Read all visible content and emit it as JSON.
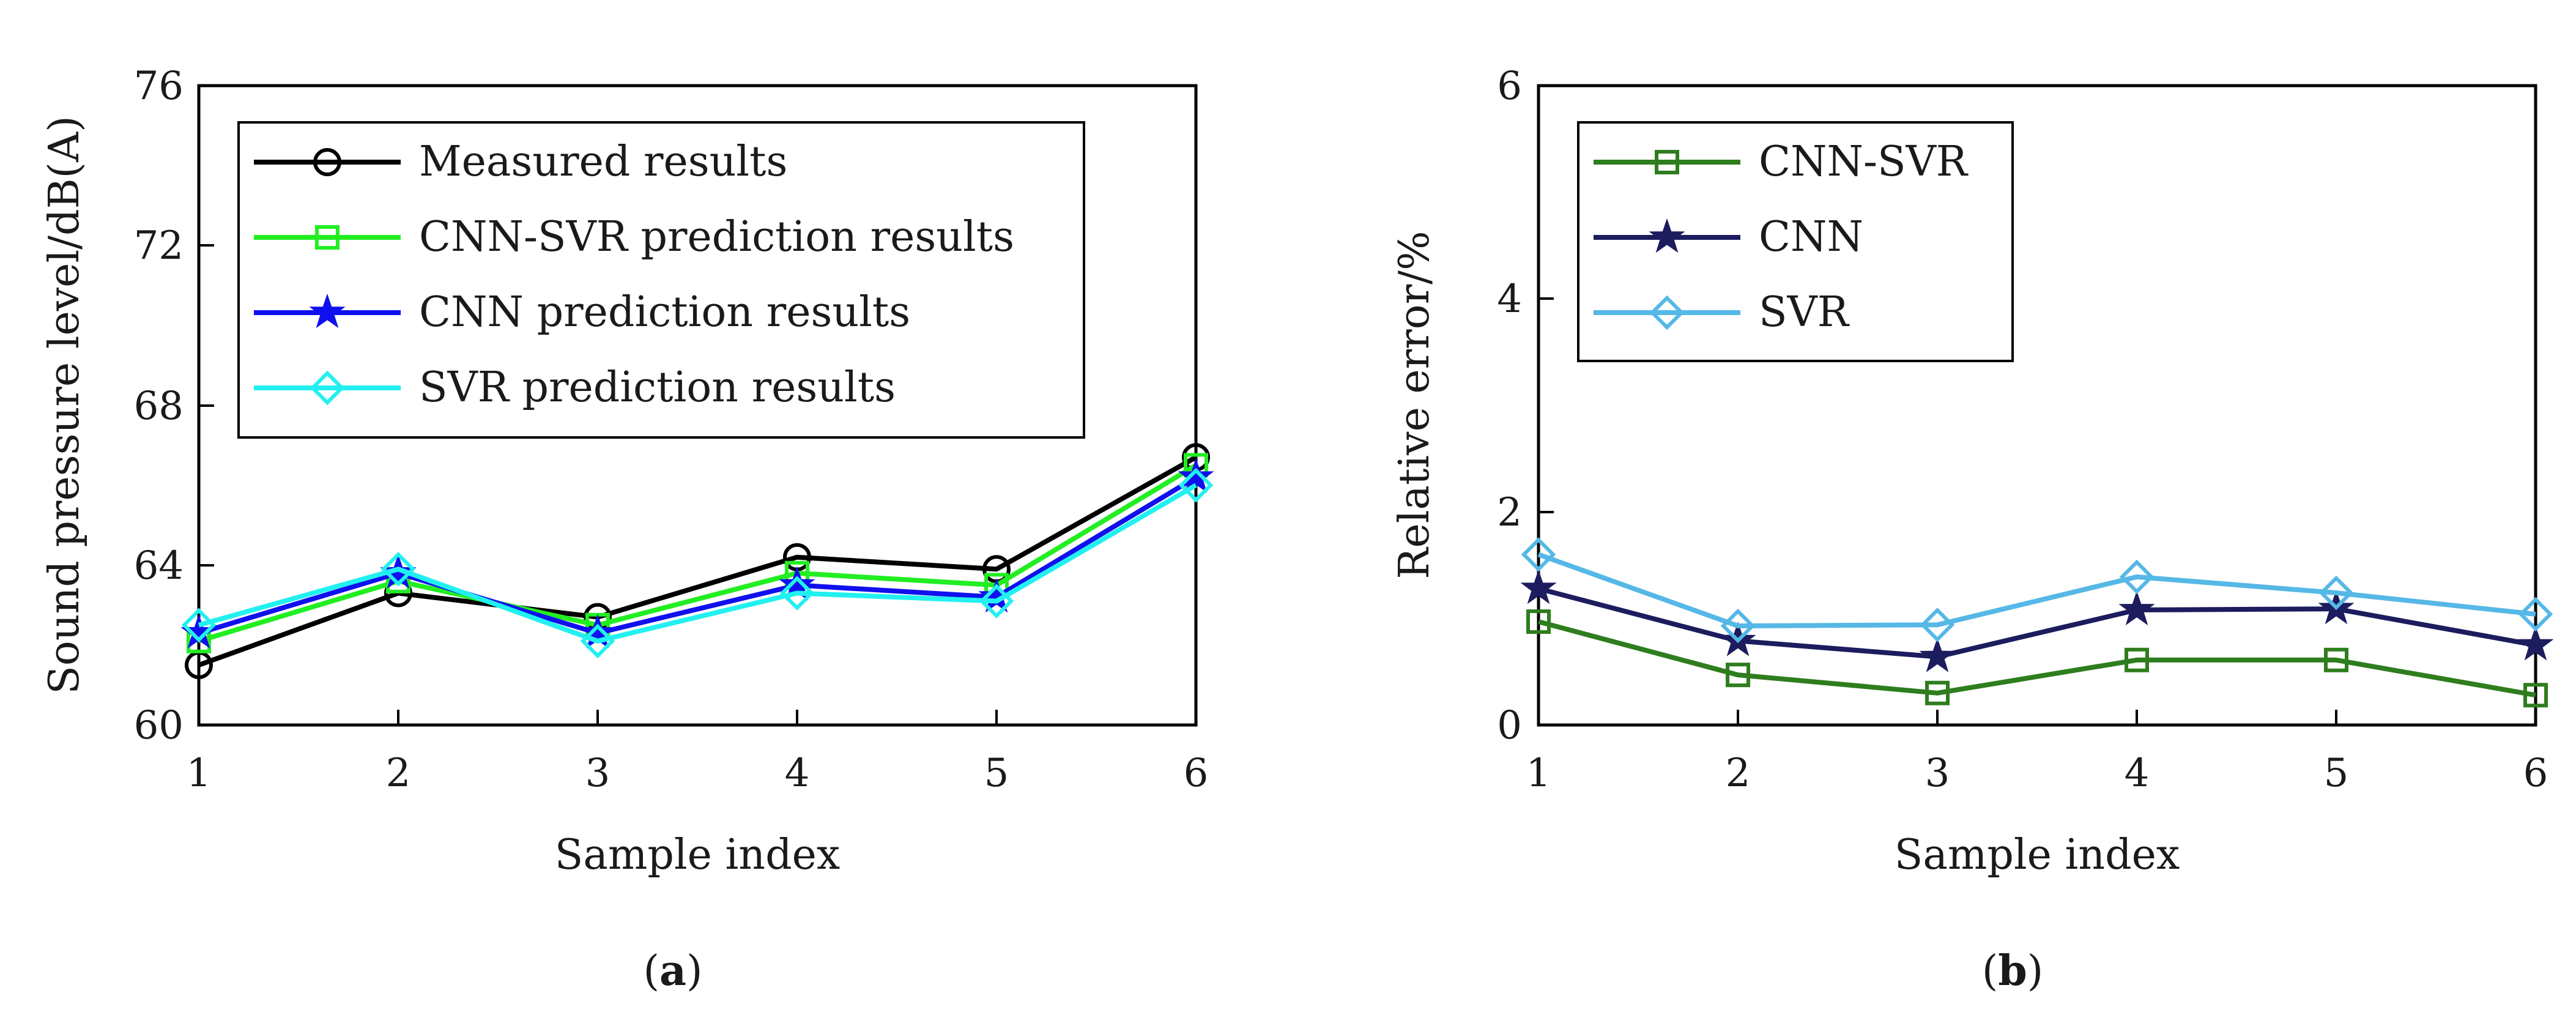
{
  "chart_data": [
    {
      "id": "a",
      "type": "line",
      "title": "",
      "caption_open": "(",
      "caption_letter": "a",
      "caption_close": ")",
      "xlabel": "Sample index",
      "ylabel": "Sound pressure level/dB(A)",
      "x": [
        1,
        2,
        3,
        4,
        5,
        6
      ],
      "xticks": [
        "1",
        "2",
        "3",
        "4",
        "5",
        "6"
      ],
      "xlim": [
        1,
        6
      ],
      "ylim": [
        60,
        76
      ],
      "yticks": [
        "60",
        "64",
        "68",
        "72",
        "76"
      ],
      "legend_position": "top-left",
      "series": [
        {
          "name": "Measured results",
          "color": "#000000",
          "marker": "circle",
          "values": [
            61.5,
            63.3,
            62.7,
            64.2,
            63.9,
            66.7
          ]
        },
        {
          "name": "CNN-SVR prediction results",
          "color": "#22ee22",
          "marker": "square",
          "values": [
            62.1,
            63.6,
            62.5,
            63.8,
            63.5,
            66.5
          ]
        },
        {
          "name": "CNN prediction results",
          "color": "#1010ee",
          "marker": "star",
          "values": [
            62.3,
            63.8,
            62.3,
            63.5,
            63.2,
            66.2
          ]
        },
        {
          "name": "SVR prediction results",
          "color": "#22f0f0",
          "marker": "diamond",
          "values": [
            62.5,
            63.9,
            62.1,
            63.3,
            63.1,
            66.0
          ]
        }
      ]
    },
    {
      "id": "b",
      "type": "line",
      "title": "",
      "caption_open": "(",
      "caption_letter": "b",
      "caption_close": ")",
      "xlabel": "Sample index",
      "ylabel": "Relative error/%",
      "x": [
        1,
        2,
        3,
        4,
        5,
        6
      ],
      "xticks": [
        "1",
        "2",
        "3",
        "4",
        "5",
        "6"
      ],
      "xlim": [
        1,
        6
      ],
      "ylim": [
        0,
        6
      ],
      "yticks": [
        "0",
        "2",
        "4",
        "6"
      ],
      "legend_position": "top-left",
      "series": [
        {
          "name": "CNN-SVR",
          "color": "#2e7d1e",
          "marker": "square",
          "values": [
            0.97,
            0.47,
            0.3,
            0.61,
            0.61,
            0.28
          ]
        },
        {
          "name": "CNN",
          "color": "#1c1c5e",
          "marker": "star",
          "values": [
            1.28,
            0.79,
            0.64,
            1.08,
            1.09,
            0.75
          ]
        },
        {
          "name": "SVR",
          "color": "#55b8e6",
          "marker": "diamond",
          "values": [
            1.6,
            0.93,
            0.94,
            1.39,
            1.24,
            1.04
          ]
        }
      ]
    }
  ]
}
